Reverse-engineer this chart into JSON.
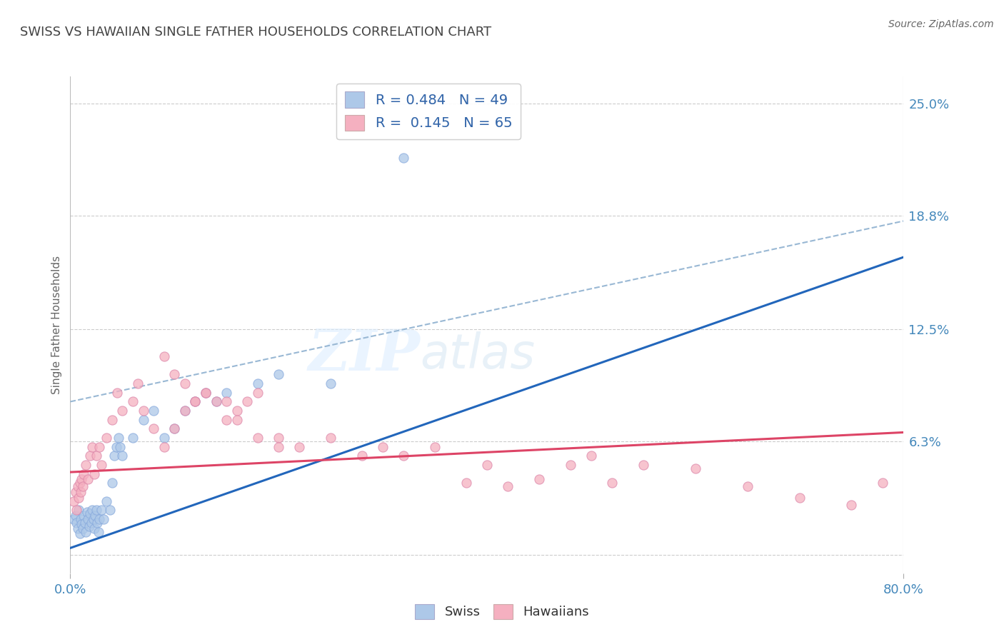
{
  "title": "SWISS VS HAWAIIAN SINGLE FATHER HOUSEHOLDS CORRELATION CHART",
  "source": "Source: ZipAtlas.com",
  "ylabel": "Single Father Households",
  "xlim": [
    0.0,
    0.8
  ],
  "ylim": [
    -0.01,
    0.265
  ],
  "ytick_vals": [
    0.0,
    0.063,
    0.125,
    0.188,
    0.25
  ],
  "ytick_labels": [
    "",
    "6.3%",
    "12.5%",
    "18.8%",
    "25.0%"
  ],
  "xtick_vals": [
    0.0,
    0.8
  ],
  "xtick_labels": [
    "0.0%",
    "80.0%"
  ],
  "swiss_color": "#adc8e8",
  "hawaiian_color": "#f5b0c0",
  "swiss_line_color": "#2266bb",
  "hawaiian_line_color": "#dd4466",
  "dashed_line_color": "#99b8d4",
  "swiss_R": 0.484,
  "swiss_N": 49,
  "hawaiian_R": 0.145,
  "hawaiian_N": 65,
  "background_color": "#ffffff",
  "grid_color": "#cccccc",
  "title_color": "#444444",
  "tick_color": "#4488bb",
  "legend_color": "#3366aa",
  "swiss_line_x0": 0.0,
  "swiss_line_y0": 0.004,
  "swiss_line_x1": 0.8,
  "swiss_line_y1": 0.165,
  "hawaiian_line_x0": 0.0,
  "hawaiian_line_y0": 0.046,
  "hawaiian_line_x1": 0.8,
  "hawaiian_line_y1": 0.068,
  "dashed_line_x0": 0.0,
  "dashed_line_y0": 0.085,
  "dashed_line_x1": 0.8,
  "dashed_line_y1": 0.185,
  "swiss_scatter_x": [
    0.003,
    0.005,
    0.006,
    0.007,
    0.008,
    0.009,
    0.01,
    0.011,
    0.012,
    0.013,
    0.014,
    0.015,
    0.016,
    0.017,
    0.018,
    0.019,
    0.02,
    0.021,
    0.022,
    0.023,
    0.024,
    0.025,
    0.026,
    0.027,
    0.028,
    0.03,
    0.032,
    0.035,
    0.038,
    0.04,
    0.042,
    0.044,
    0.046,
    0.048,
    0.05,
    0.06,
    0.07,
    0.08,
    0.09,
    0.1,
    0.11,
    0.12,
    0.13,
    0.14,
    0.15,
    0.18,
    0.2,
    0.25,
    0.32
  ],
  "swiss_scatter_y": [
    0.02,
    0.022,
    0.018,
    0.015,
    0.025,
    0.012,
    0.02,
    0.017,
    0.015,
    0.022,
    0.018,
    0.013,
    0.024,
    0.02,
    0.016,
    0.023,
    0.018,
    0.025,
    0.02,
    0.015,
    0.022,
    0.025,
    0.018,
    0.013,
    0.02,
    0.025,
    0.02,
    0.03,
    0.025,
    0.04,
    0.055,
    0.06,
    0.065,
    0.06,
    0.055,
    0.065,
    0.075,
    0.08,
    0.065,
    0.07,
    0.08,
    0.085,
    0.09,
    0.085,
    0.09,
    0.095,
    0.1,
    0.095,
    0.22
  ],
  "hawaiian_scatter_x": [
    0.003,
    0.005,
    0.006,
    0.007,
    0.008,
    0.009,
    0.01,
    0.011,
    0.012,
    0.013,
    0.015,
    0.017,
    0.019,
    0.021,
    0.023,
    0.025,
    0.028,
    0.03,
    0.035,
    0.04,
    0.045,
    0.05,
    0.06,
    0.065,
    0.07,
    0.08,
    0.09,
    0.1,
    0.11,
    0.12,
    0.13,
    0.14,
    0.15,
    0.16,
    0.17,
    0.18,
    0.2,
    0.22,
    0.25,
    0.28,
    0.3,
    0.32,
    0.35,
    0.38,
    0.4,
    0.42,
    0.45,
    0.48,
    0.5,
    0.52,
    0.55,
    0.6,
    0.65,
    0.7,
    0.75,
    0.78,
    0.09,
    0.1,
    0.11,
    0.12,
    0.13,
    0.15,
    0.16,
    0.18,
    0.2
  ],
  "hawaiian_scatter_y": [
    0.03,
    0.035,
    0.025,
    0.038,
    0.032,
    0.04,
    0.035,
    0.042,
    0.038,
    0.045,
    0.05,
    0.042,
    0.055,
    0.06,
    0.045,
    0.055,
    0.06,
    0.05,
    0.065,
    0.075,
    0.09,
    0.08,
    0.085,
    0.095,
    0.08,
    0.07,
    0.06,
    0.07,
    0.08,
    0.085,
    0.09,
    0.085,
    0.075,
    0.08,
    0.085,
    0.09,
    0.065,
    0.06,
    0.065,
    0.055,
    0.06,
    0.055,
    0.06,
    0.04,
    0.05,
    0.038,
    0.042,
    0.05,
    0.055,
    0.04,
    0.05,
    0.048,
    0.038,
    0.032,
    0.028,
    0.04,
    0.11,
    0.1,
    0.095,
    0.085,
    0.09,
    0.085,
    0.075,
    0.065,
    0.06
  ]
}
